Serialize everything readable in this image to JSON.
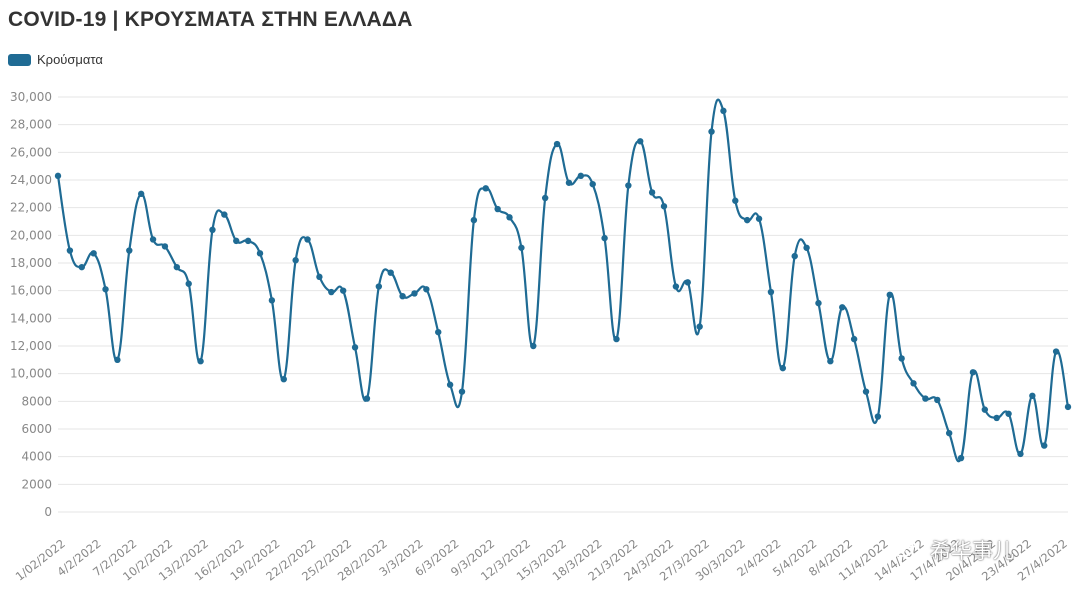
{
  "title": "COVID-19 | ΚΡΟΥΣΜΑΤΑ ΣΤΗΝ ΕΛΛΑΔΑ",
  "legend": {
    "label": "Κρούσματα",
    "color": "#1f6b94"
  },
  "watermark": {
    "text": "希华事儿",
    "icon": "wechat-icon"
  },
  "chart_data": {
    "type": "line",
    "title": "COVID-19 | ΚΡΟΥΣΜΑΤΑ ΣΤΗΝ ΕΛΛΑΔΑ",
    "xlabel": "",
    "ylabel": "",
    "ylim": [
      0,
      30000
    ],
    "yticks": [
      0,
      2000,
      4000,
      6000,
      8000,
      10000,
      12000,
      14000,
      16000,
      18000,
      20000,
      22000,
      24000,
      26000,
      28000,
      30000
    ],
    "ytick_labels": [
      "0",
      "2000",
      "4000",
      "6000",
      "8000",
      "10,000",
      "12,000",
      "14,000",
      "16,000",
      "18,000",
      "20,000",
      "22,000",
      "24,000",
      "26,000",
      "28,000",
      "30,000"
    ],
    "grid": true,
    "legend_position": "top-left",
    "xtick_labels": [
      "1/02/2022",
      "4/2/2022",
      "7/2/2022",
      "10/2/2022",
      "13/2/2022",
      "16/2/2022",
      "19/2/2022",
      "22/2/2022",
      "25/2/2022",
      "28/2/2022",
      "3/3/2022",
      "6/3/2022",
      "9/3/2022",
      "12/3/2022",
      "15/3/2022",
      "18/3/2022",
      "21/3/2022",
      "24/3/2022",
      "27/3/2022",
      "30/3/2022",
      "2/4/2022",
      "5/4/2022",
      "8/4/2022",
      "11/4/2022",
      "14/4/2022",
      "17/4/2022",
      "20/4/2022",
      "23/4/2022",
      "27/4/2022"
    ],
    "series": [
      {
        "name": "Κρούσματα",
        "color": "#1f6b94",
        "values": [
          24300,
          18900,
          17700,
          18700,
          16100,
          11000,
          18900,
          23000,
          19700,
          19200,
          17700,
          16500,
          10900,
          20400,
          21500,
          19600,
          19600,
          18700,
          15300,
          9600,
          18200,
          19700,
          17000,
          15900,
          16000,
          11900,
          8200,
          16300,
          17300,
          15600,
          15800,
          16100,
          13000,
          9200,
          8700,
          21100,
          23400,
          21900,
          21300,
          19100,
          12000,
          22700,
          26600,
          23800,
          24300,
          23700,
          19800,
          12500,
          23600,
          26800,
          23100,
          22100,
          16300,
          16600,
          13400,
          27500,
          29000,
          22500,
          21100,
          21200,
          15900,
          10400,
          18500,
          19100,
          15100,
          10900,
          14800,
          12500,
          8700,
          6900,
          15700,
          11100,
          9300,
          8200,
          8100,
          5700,
          3900,
          10100,
          7400,
          6800,
          7100,
          4200,
          8400,
          4800,
          11600,
          7600
        ]
      }
    ]
  }
}
